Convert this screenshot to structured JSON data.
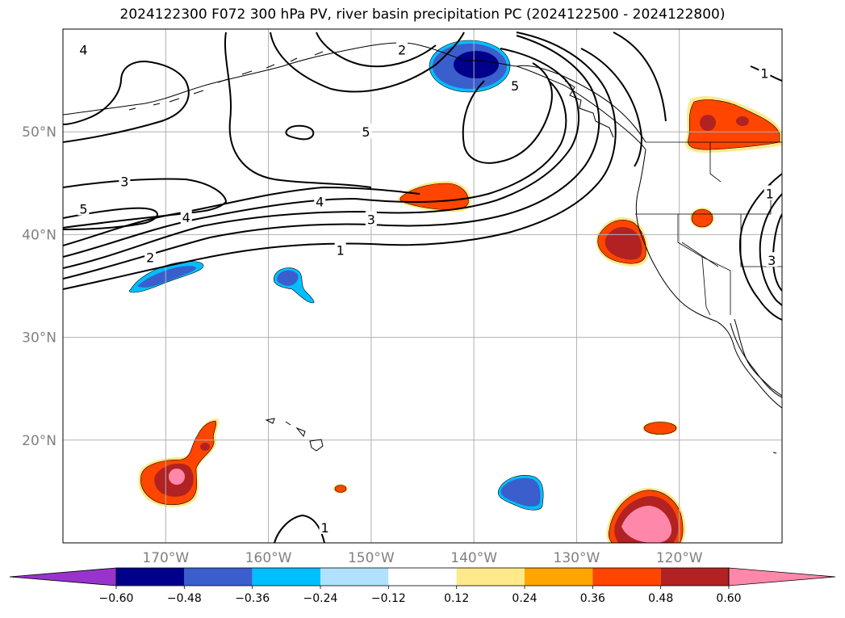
{
  "title": "2024122300 F072 300 hPa PV, river basin precipitation PC (2024122500 - 2024122800)",
  "map": {
    "projection": "PlateCarree",
    "lon_range": [
      -180,
      -110
    ],
    "lat_range": [
      10,
      60
    ],
    "gridlines": true,
    "lat_ticks": [
      {
        "lat": 50,
        "label": "50°N"
      },
      {
        "lat": 40,
        "label": "40°N"
      },
      {
        "lat": 30,
        "label": "30°N"
      },
      {
        "lat": 20,
        "label": "20°N"
      }
    ],
    "lon_ticks": [
      {
        "lon": -170,
        "label": "170°W"
      },
      {
        "lon": -160,
        "label": "160°W"
      },
      {
        "lon": -150,
        "label": "150°W"
      },
      {
        "lon": -140,
        "label": "140°W"
      },
      {
        "lon": -130,
        "label": "130°W"
      },
      {
        "lon": -120,
        "label": "120°W"
      }
    ],
    "pv_contour_labels": [
      {
        "text": "4",
        "lon": -178,
        "lat": 58
      },
      {
        "text": "2",
        "lon": -147,
        "lat": 58
      },
      {
        "text": "5",
        "lon": -136,
        "lat": 54.5
      },
      {
        "text": "5",
        "lon": -150.5,
        "lat": 50
      },
      {
        "text": "3",
        "lon": -174,
        "lat": 45.2
      },
      {
        "text": "4",
        "lon": -155,
        "lat": 43.2
      },
      {
        "text": "5",
        "lon": -178,
        "lat": 42.5
      },
      {
        "text": "4",
        "lon": -168,
        "lat": 41.7
      },
      {
        "text": "3",
        "lon": -150,
        "lat": 41.5
      },
      {
        "text": "1",
        "lon": -153,
        "lat": 38.5
      },
      {
        "text": "2",
        "lon": -171.5,
        "lat": 37.8
      },
      {
        "text": "1",
        "lon": -111.7,
        "lat": 55.7
      },
      {
        "text": "1",
        "lon": -111.2,
        "lat": 44
      },
      {
        "text": "3",
        "lon": -111,
        "lat": 37.5
      },
      {
        "text": "1",
        "lon": -154.5,
        "lat": 11.5
      }
    ]
  },
  "colorbar": {
    "extend": "both",
    "levels": [
      -0.72,
      -0.6,
      -0.48,
      -0.36,
      -0.24,
      -0.12,
      0.12,
      0.24,
      0.36,
      0.48,
      0.6,
      0.72
    ],
    "colors": [
      "#9933cc",
      "#00008b",
      "#3a5fcd",
      "#00bfff",
      "#b0e2ff",
      "#ffffff",
      "#ffe98a",
      "#ffa500",
      "#ff4500",
      "#b22222",
      "#ff88aa"
    ],
    "tick_labels": [
      "−0.60",
      "−0.48",
      "−0.36",
      "−0.24",
      "−0.12",
      "0.12",
      "0.24",
      "0.36",
      "0.48",
      "0.60"
    ]
  }
}
